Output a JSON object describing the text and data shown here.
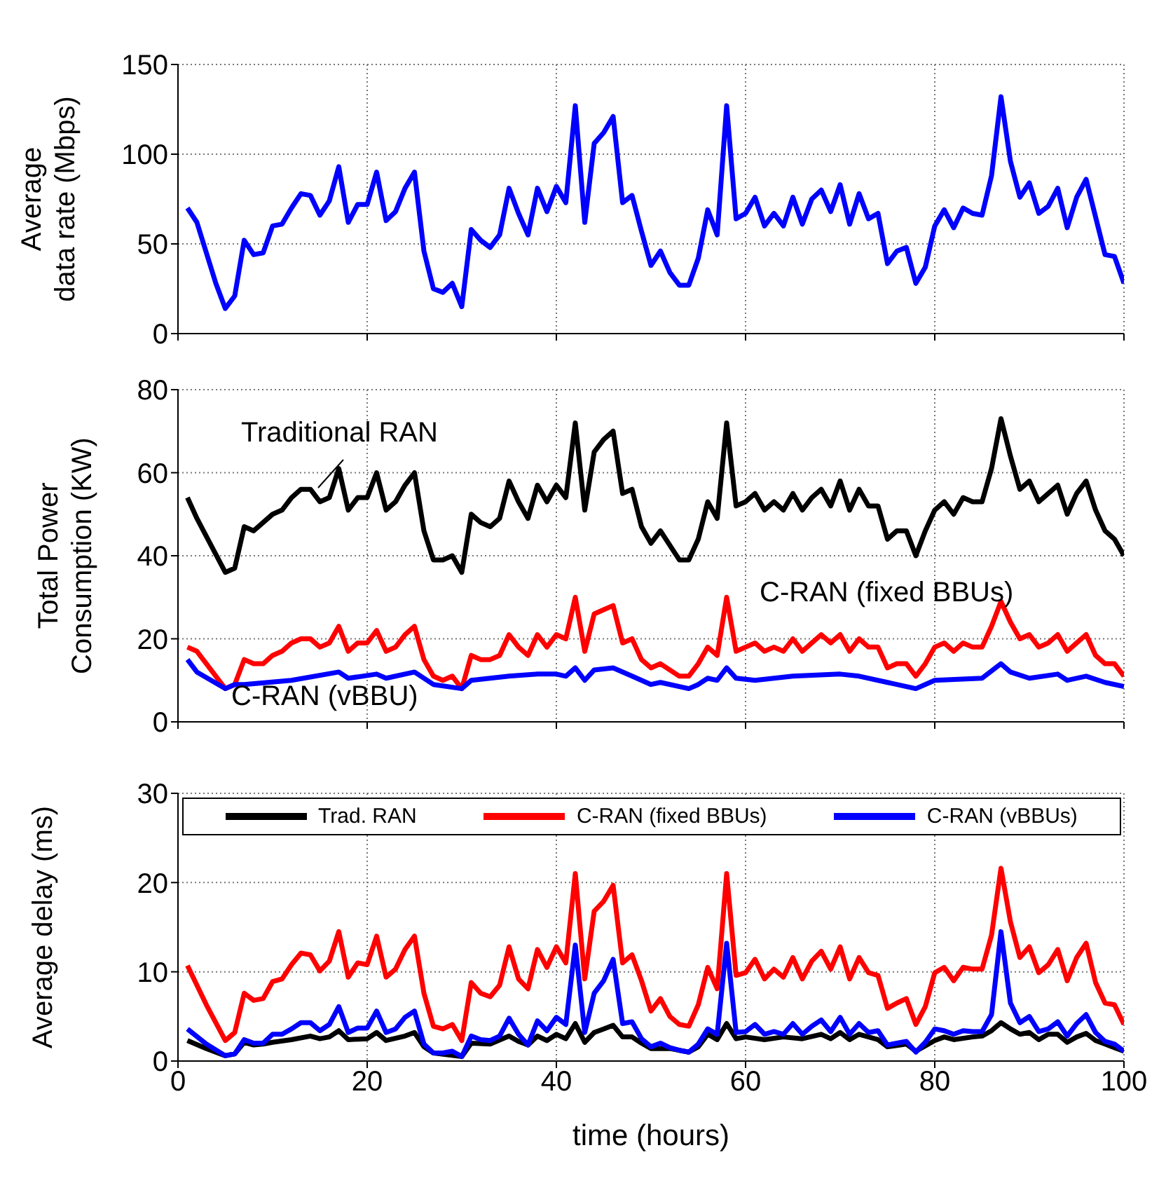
{
  "chart_data": [
    {
      "type": "line",
      "ylabel": "Average\ndata rate (Mbps)",
      "xlim": [
        0,
        100
      ],
      "xticks": [
        0,
        20,
        40,
        60,
        80,
        100
      ],
      "ylim": [
        0,
        150
      ],
      "yticks": [
        0,
        50,
        100,
        150
      ],
      "grid": true,
      "tick_labels": "y",
      "line_style": "solid",
      "series": [
        {
          "color": "#0000ff",
          "x": [
            1,
            2,
            3,
            4,
            5,
            6,
            7,
            8,
            9,
            10,
            11,
            12,
            13,
            14,
            15,
            16,
            17,
            18,
            19,
            20,
            21,
            22,
            23,
            24,
            25,
            26,
            27,
            28,
            29,
            30,
            31,
            32,
            33,
            34,
            35,
            36,
            37,
            38,
            39,
            40,
            41,
            42,
            43,
            44,
            45,
            46,
            47,
            48,
            49,
            50,
            51,
            52,
            53,
            54,
            55,
            56,
            57,
            58,
            59,
            60,
            61,
            62,
            63,
            64,
            65,
            66,
            67,
            68,
            69,
            70,
            71,
            72,
            73,
            74,
            75,
            76,
            77,
            78,
            79,
            80,
            81,
            82,
            83,
            84,
            85,
            86,
            87,
            88,
            89,
            90,
            91,
            92,
            93,
            94,
            95,
            96,
            97,
            98,
            99,
            100
          ],
          "values": [
            70,
            62,
            45,
            28,
            14,
            21,
            52,
            44,
            45,
            60,
            61,
            70,
            78,
            77,
            66,
            74,
            93,
            62,
            72,
            72,
            90,
            63,
            68,
            81,
            90,
            46,
            25,
            23,
            28,
            15,
            58,
            52,
            48,
            55,
            81,
            67,
            55,
            81,
            68,
            82,
            73,
            127,
            62,
            106,
            112,
            121,
            73,
            77,
            57,
            38,
            46,
            34,
            27,
            27,
            42,
            69,
            55,
            127,
            64,
            67,
            76,
            60,
            67,
            60,
            76,
            61,
            75,
            80,
            68,
            83,
            61,
            78,
            64,
            67,
            39,
            46,
            48,
            28,
            37,
            60,
            69,
            59,
            70,
            67,
            66,
            88,
            132,
            96,
            76,
            84,
            67,
            71,
            81,
            59,
            76,
            86,
            65,
            44,
            43,
            28
          ]
        }
      ]
    },
    {
      "type": "line",
      "ylabel": "Total Power\nConsumption (KW)",
      "xlim": [
        0,
        100
      ],
      "xticks": [
        0,
        20,
        40,
        60,
        80,
        100
      ],
      "ylim": [
        0,
        80
      ],
      "yticks": [
        0,
        20,
        40,
        60,
        80
      ],
      "grid": true,
      "tick_labels": "y",
      "legend": false,
      "line_style": "solid",
      "series": [
        {
          "name": "Traditional RAN",
          "color": "#000000",
          "x": [
            1,
            2,
            5,
            6,
            7,
            8,
            10,
            11,
            12,
            13,
            14,
            15,
            16,
            17,
            18,
            19,
            20,
            21,
            22,
            23,
            24,
            25,
            26,
            27,
            28,
            29,
            30,
            31,
            32,
            33,
            34,
            35,
            36,
            37,
            38,
            39,
            40,
            41,
            42,
            43,
            44,
            45,
            46,
            47,
            48,
            49,
            50,
            51,
            53,
            54,
            55,
            56,
            57,
            58,
            59,
            60,
            61,
            62,
            63,
            64,
            65,
            66,
            67,
            68,
            69,
            70,
            71,
            72,
            73,
            74,
            75,
            76,
            77,
            78,
            79,
            80,
            81,
            82,
            83,
            84,
            85,
            86,
            87,
            88,
            89,
            90,
            91,
            92,
            93,
            94,
            95,
            96,
            97,
            98,
            99,
            100
          ],
          "values": [
            54,
            49,
            36,
            37,
            47,
            46,
            50,
            51,
            54,
            56,
            56,
            53,
            54,
            61,
            51,
            54,
            54,
            60,
            51,
            53,
            57,
            60,
            46,
            39,
            39,
            40,
            36,
            50,
            48,
            47,
            49,
            58,
            53,
            49,
            57,
            53,
            57,
            54,
            72,
            51,
            65,
            68,
            70,
            55,
            56,
            47,
            43,
            46,
            39,
            39,
            44,
            53,
            49,
            72,
            52,
            53,
            55,
            51,
            53,
            51,
            55,
            51,
            54,
            56,
            52,
            58,
            51,
            56,
            52,
            52,
            44,
            46,
            46,
            40,
            46,
            51,
            53,
            50,
            54,
            53,
            53,
            61,
            73,
            64,
            56,
            58,
            53,
            55,
            57,
            50,
            55,
            58,
            51,
            46,
            44,
            40
          ]
        },
        {
          "name": "C-RAN (fixed BBUs)",
          "color": "#ff0000",
          "x": [
            1,
            2,
            5,
            6,
            7,
            8,
            9,
            10,
            11,
            12,
            13,
            14,
            15,
            16,
            17,
            18,
            19,
            20,
            21,
            22,
            23,
            24,
            25,
            26,
            27,
            28,
            29,
            30,
            31,
            32,
            33,
            34,
            35,
            36,
            37,
            38,
            39,
            40,
            41,
            42,
            43,
            44,
            45,
            46,
            47,
            48,
            49,
            50,
            51,
            53,
            54,
            55,
            56,
            57,
            58,
            59,
            60,
            61,
            62,
            63,
            64,
            65,
            66,
            67,
            68,
            69,
            70,
            71,
            72,
            73,
            74,
            75,
            76,
            77,
            78,
            79,
            80,
            81,
            82,
            83,
            84,
            85,
            86,
            87,
            88,
            89,
            90,
            91,
            92,
            93,
            94,
            95,
            96,
            97,
            98,
            99,
            100
          ],
          "values": [
            18,
            17,
            8,
            9,
            15,
            14,
            14,
            16,
            17,
            19,
            20,
            20,
            18,
            19,
            23,
            17,
            19,
            19,
            22,
            17,
            18,
            21,
            23,
            15,
            11,
            10,
            11,
            8,
            16,
            15,
            15,
            16,
            21,
            18,
            16,
            21,
            18,
            21,
            20,
            30,
            17,
            26,
            27,
            28,
            19,
            20,
            15,
            13,
            14,
            11,
            11,
            14,
            18,
            16,
            30,
            17,
            18,
            19,
            17,
            18,
            17,
            20,
            17,
            19,
            21,
            19,
            21,
            17,
            20,
            18,
            18,
            13,
            14,
            14,
            11,
            14,
            18,
            19,
            17,
            19,
            18,
            18,
            23,
            29,
            24,
            20,
            21,
            18,
            19,
            21,
            17,
            19,
            21,
            16,
            14,
            14,
            11
          ]
        },
        {
          "name": "C-RAN (vBBU)",
          "color": "#0000ff",
          "x": [
            1,
            2,
            5,
            6,
            7,
            12,
            17,
            18,
            21,
            22,
            25,
            27,
            30,
            31,
            35,
            38,
            40,
            41,
            42,
            43,
            44,
            46,
            48,
            50,
            51,
            54,
            55,
            56,
            57,
            58,
            59,
            61,
            65,
            70,
            72,
            75,
            78,
            80,
            85,
            87,
            88,
            90,
            93,
            94,
            96,
            98,
            100
          ],
          "values": [
            15,
            12,
            8,
            9,
            9,
            10,
            12,
            10.5,
            11.5,
            10.5,
            12,
            9,
            8,
            10,
            11,
            11.5,
            11.5,
            11,
            13,
            10,
            12.5,
            13,
            11,
            9,
            9.5,
            8,
            9,
            10.5,
            10,
            13,
            10.5,
            10,
            11,
            11.5,
            11,
            9.5,
            8,
            10,
            10.5,
            14,
            12,
            10.5,
            11.5,
            10,
            11,
            9.5,
            8.5
          ]
        }
      ]
    },
    {
      "type": "line",
      "ylabel": "Average delay (ms)",
      "xlabel": "time (hours)",
      "xlim": [
        0,
        100
      ],
      "xticks": [
        0,
        20,
        40,
        60,
        80,
        100
      ],
      "ylim": [
        0,
        30
      ],
      "yticks": [
        0,
        10,
        20,
        30
      ],
      "grid": true,
      "legend": "top",
      "line_style": "solid",
      "series": [
        {
          "name": "Trad. RAN",
          "color": "#000000",
          "x": [
            1,
            3,
            5,
            6,
            7,
            8,
            9,
            10,
            12,
            14,
            15,
            16,
            17,
            18,
            20,
            21,
            22,
            24,
            25,
            26,
            27,
            30,
            31,
            33,
            35,
            36,
            37,
            38,
            39,
            40,
            41,
            42,
            43,
            44,
            45,
            46,
            47,
            48,
            49,
            50,
            52,
            54,
            55,
            56,
            57,
            58,
            59,
            60,
            62,
            64,
            66,
            68,
            69,
            70,
            71,
            72,
            74,
            75,
            77,
            78,
            80,
            81,
            82,
            84,
            85,
            86,
            87,
            88,
            89,
            90,
            91,
            92,
            93,
            94,
            95,
            96,
            97,
            98,
            99,
            100
          ],
          "values": [
            2.3,
            1.4,
            0.6,
            0.8,
            2.1,
            1.8,
            1.9,
            2.1,
            2.4,
            2.8,
            2.5,
            2.7,
            3.4,
            2.4,
            2.5,
            3.2,
            2.3,
            2.8,
            3.2,
            1.6,
            0.9,
            0.5,
            2,
            1.9,
            2.8,
            2.2,
            1.8,
            2.8,
            2.3,
            3,
            2.5,
            4.2,
            2.1,
            3.2,
            3.6,
            4,
            2.7,
            2.7,
            2,
            1.4,
            1.4,
            1,
            1.6,
            3,
            2.4,
            4.2,
            2.5,
            2.7,
            2.4,
            2.7,
            2.5,
            3,
            2.5,
            3.2,
            2.4,
            3,
            2.4,
            1.6,
            1.9,
            1.1,
            2.3,
            2.7,
            2.4,
            2.7,
            2.8,
            3.4,
            4.3,
            3.6,
            3,
            3.2,
            2.4,
            3,
            3,
            2.1,
            2.7,
            3.1,
            2.3,
            1.9,
            1.5,
            1.1
          ]
        },
        {
          "name": "C-RAN (fixed BBUs)",
          "color": "#ff0000",
          "x": [
            1,
            3,
            5,
            6,
            7,
            8,
            9,
            10,
            11,
            12,
            13,
            14,
            15,
            16,
            17,
            18,
            19,
            20,
            21,
            22,
            23,
            24,
            25,
            26,
            27,
            28,
            29,
            30,
            31,
            32,
            33,
            34,
            35,
            36,
            37,
            38,
            39,
            40,
            41,
            42,
            43,
            44,
            45,
            46,
            47,
            48,
            49,
            50,
            51,
            52,
            53,
            54,
            55,
            56,
            57,
            58,
            59,
            60,
            61,
            62,
            63,
            64,
            65,
            66,
            67,
            68,
            69,
            70,
            71,
            72,
            73,
            74,
            75,
            76,
            77,
            78,
            79,
            80,
            81,
            82,
            83,
            84,
            85,
            86,
            87,
            88,
            89,
            90,
            91,
            92,
            93,
            94,
            95,
            96,
            97,
            98,
            99,
            100
          ],
          "values": [
            10.7,
            6.3,
            2.3,
            3.2,
            7.6,
            6.8,
            7,
            8.9,
            9.2,
            10.8,
            12.1,
            11.9,
            10.1,
            11.2,
            14.5,
            9.4,
            11,
            10.8,
            14,
            9.4,
            10.3,
            12.5,
            14,
            7.6,
            3.9,
            3.6,
            4.1,
            2.3,
            8.8,
            7.6,
            7.2,
            8.5,
            12.8,
            9.2,
            8.1,
            12.5,
            10.5,
            12.8,
            11,
            21,
            9.2,
            16.8,
            17.9,
            19.7,
            11,
            11.9,
            9,
            5.6,
            7,
            5,
            4.1,
            3.9,
            6.3,
            10.5,
            8.1,
            21,
            9.6,
            9.9,
            11.4,
            9.2,
            10.3,
            9.4,
            11.6,
            9.2,
            11.2,
            12.3,
            10.3,
            12.8,
            9.2,
            11.6,
            9.9,
            9.6,
            5.9,
            6.5,
            7,
            4.1,
            6.1,
            9.9,
            10.5,
            9,
            10.5,
            10.3,
            10.3,
            14.1,
            21.6,
            15.6,
            11.6,
            12.8,
            9.9,
            10.8,
            12.5,
            9,
            11.6,
            13.2,
            8.8,
            6.5,
            6.3,
            4.1
          ]
        },
        {
          "name": "C-RAN (vBBUs)",
          "color": "#0000ff",
          "x": [
            1,
            3,
            5,
            6,
            7,
            8,
            9,
            10,
            11,
            12,
            13,
            14,
            15,
            16,
            17,
            18,
            19,
            20,
            21,
            22,
            23,
            24,
            25,
            26,
            27,
            28,
            29,
            30,
            31,
            32,
            33,
            34,
            35,
            36,
            37,
            38,
            39,
            40,
            41,
            42,
            43,
            44,
            45,
            46,
            47,
            48,
            49,
            50,
            51,
            52,
            53,
            54,
            55,
            56,
            57,
            58,
            59,
            60,
            61,
            62,
            63,
            64,
            65,
            66,
            67,
            68,
            69,
            70,
            71,
            72,
            73,
            74,
            75,
            76,
            77,
            78,
            79,
            80,
            81,
            82,
            83,
            84,
            85,
            86,
            87,
            88,
            89,
            90,
            91,
            92,
            93,
            94,
            95,
            96,
            97,
            98,
            99,
            100
          ],
          "values": [
            3.6,
            1.9,
            0.6,
            0.8,
            2.4,
            2,
            2,
            3,
            3,
            3.6,
            4.3,
            4.3,
            3.4,
            4.1,
            6.1,
            3.2,
            3.7,
            3.7,
            5.6,
            3.2,
            3.6,
            4.9,
            5.6,
            1.9,
            0.9,
            0.9,
            1.1,
            0.5,
            2.8,
            2.4,
            2.3,
            2.8,
            4.8,
            3,
            1.8,
            4.5,
            3.4,
            4.9,
            4.1,
            13,
            3.2,
            7.6,
            9,
            11.4,
            4.2,
            4.4,
            2.5,
            1.6,
            2,
            1.5,
            1.2,
            1,
            1.9,
            3.6,
            3,
            13.2,
            3.2,
            3.3,
            4.1,
            3,
            3.3,
            3,
            4.2,
            3,
            3.9,
            4.6,
            3.3,
            4.9,
            3,
            4.2,
            3.2,
            3.4,
            1.8,
            2,
            2.2,
            1,
            2.1,
            3.6,
            3.4,
            3,
            3.4,
            3.3,
            3.3,
            5.2,
            14.5,
            6.5,
            4.3,
            5,
            3.3,
            3.6,
            4.4,
            2.8,
            4.2,
            5.2,
            3.2,
            2.2,
            1.9,
            1.1
          ]
        }
      ]
    }
  ]
}
